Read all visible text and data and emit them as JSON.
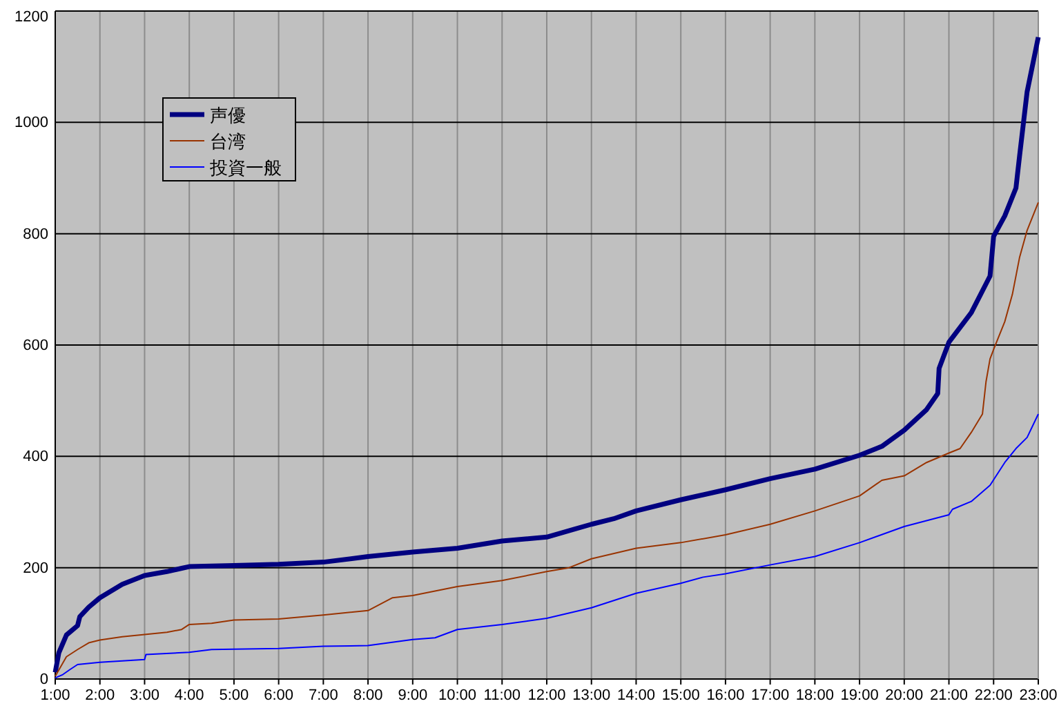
{
  "chart_data": {
    "type": "line",
    "xlim": [
      1,
      23
    ],
    "ylim": [
      0,
      1200
    ],
    "xticks": [
      {
        "value": 1,
        "label": "1:00"
      },
      {
        "value": 2,
        "label": "2:00"
      },
      {
        "value": 3,
        "label": "3:00"
      },
      {
        "value": 4,
        "label": "4:00"
      },
      {
        "value": 5,
        "label": "5:00"
      },
      {
        "value": 6,
        "label": "6:00"
      },
      {
        "value": 7,
        "label": "7:00"
      },
      {
        "value": 8,
        "label": "8:00"
      },
      {
        "value": 9,
        "label": "9:00"
      },
      {
        "value": 10,
        "label": "10:00"
      },
      {
        "value": 11,
        "label": "11:00"
      },
      {
        "value": 12,
        "label": "12:00"
      },
      {
        "value": 13,
        "label": "13:00"
      },
      {
        "value": 14,
        "label": "14:00"
      },
      {
        "value": 15,
        "label": "15:00"
      },
      {
        "value": 16,
        "label": "16:00"
      },
      {
        "value": 17,
        "label": "17:00"
      },
      {
        "value": 18,
        "label": "18:00"
      },
      {
        "value": 19,
        "label": "19:00"
      },
      {
        "value": 20,
        "label": "20:00"
      },
      {
        "value": 21,
        "label": "21:00"
      },
      {
        "value": 22,
        "label": "22:00"
      },
      {
        "value": 23,
        "label": "23:00"
      }
    ],
    "yticks": [
      0,
      200,
      400,
      600,
      800,
      1000,
      1200
    ],
    "grid": true,
    "legend": "top left",
    "marker": "none",
    "line_style": "solid",
    "series": [
      {
        "name": "声優",
        "color": "#000080",
        "x": [
          1,
          1.08,
          1.25,
          1.5,
          1.55,
          1.75,
          2,
          2.5,
          3,
          3.5,
          3.83,
          4,
          5,
          6,
          7,
          8,
          9,
          10,
          11,
          12,
          13,
          13.5,
          14,
          15,
          16,
          17,
          18,
          19,
          19.5,
          20,
          20.5,
          20.75,
          20.78,
          21,
          21.5,
          21.92,
          22,
          22.25,
          22.5,
          22.58,
          22.75,
          23
        ],
        "values": [
          12,
          47,
          79,
          96,
          112,
          129,
          146,
          170,
          186,
          193,
          199,
          202,
          204,
          206,
          210,
          220,
          228,
          235,
          248,
          255,
          278,
          288,
          302,
          322,
          340,
          360,
          377,
          402,
          418,
          447,
          484,
          513,
          558,
          605,
          658,
          724,
          795,
          832,
          882,
          939,
          1055,
          1153
        ]
      },
      {
        "name": "台湾",
        "color": "#993300",
        "x": [
          1,
          1.25,
          1.5,
          1.75,
          2,
          2.5,
          3,
          3.5,
          3.83,
          4,
          4.5,
          5,
          6,
          7,
          8,
          8.55,
          9,
          10,
          11,
          12,
          12.5,
          13,
          14,
          15,
          16,
          17,
          18,
          19,
          19.5,
          20,
          20.5,
          21,
          21.25,
          21.5,
          21.75,
          21.83,
          21.92,
          22,
          22.25,
          22.42,
          22.58,
          22.75,
          23
        ],
        "values": [
          5,
          40,
          53,
          65,
          70,
          76,
          80,
          84,
          89,
          98,
          100,
          106,
          108,
          115,
          123,
          146,
          150,
          166,
          177,
          193,
          200,
          216,
          235,
          245,
          259,
          278,
          302,
          329,
          357,
          365,
          389,
          406,
          414,
          443,
          476,
          534,
          575,
          592,
          642,
          691,
          757,
          806,
          856
        ]
      },
      {
        "name": "投資一般",
        "color": "#0000ff",
        "x": [
          1,
          1.17,
          1.33,
          1.5,
          2,
          3,
          3.03,
          4,
          4.5,
          6,
          7,
          8,
          9,
          9.5,
          10,
          11,
          12,
          13,
          13.5,
          14,
          15,
          15.5,
          16,
          17,
          18,
          19,
          20,
          21,
          21.08,
          21.5,
          21.92,
          22.25,
          22.5,
          22.75,
          23
        ],
        "values": [
          2,
          8,
          17,
          26,
          30,
          35,
          44,
          48,
          53,
          55,
          59,
          60,
          71,
          74,
          89,
          98,
          109,
          128,
          141,
          154,
          172,
          183,
          189,
          205,
          220,
          245,
          274,
          295,
          305,
          319,
          348,
          389,
          414,
          434,
          476
        ]
      }
    ]
  }
}
